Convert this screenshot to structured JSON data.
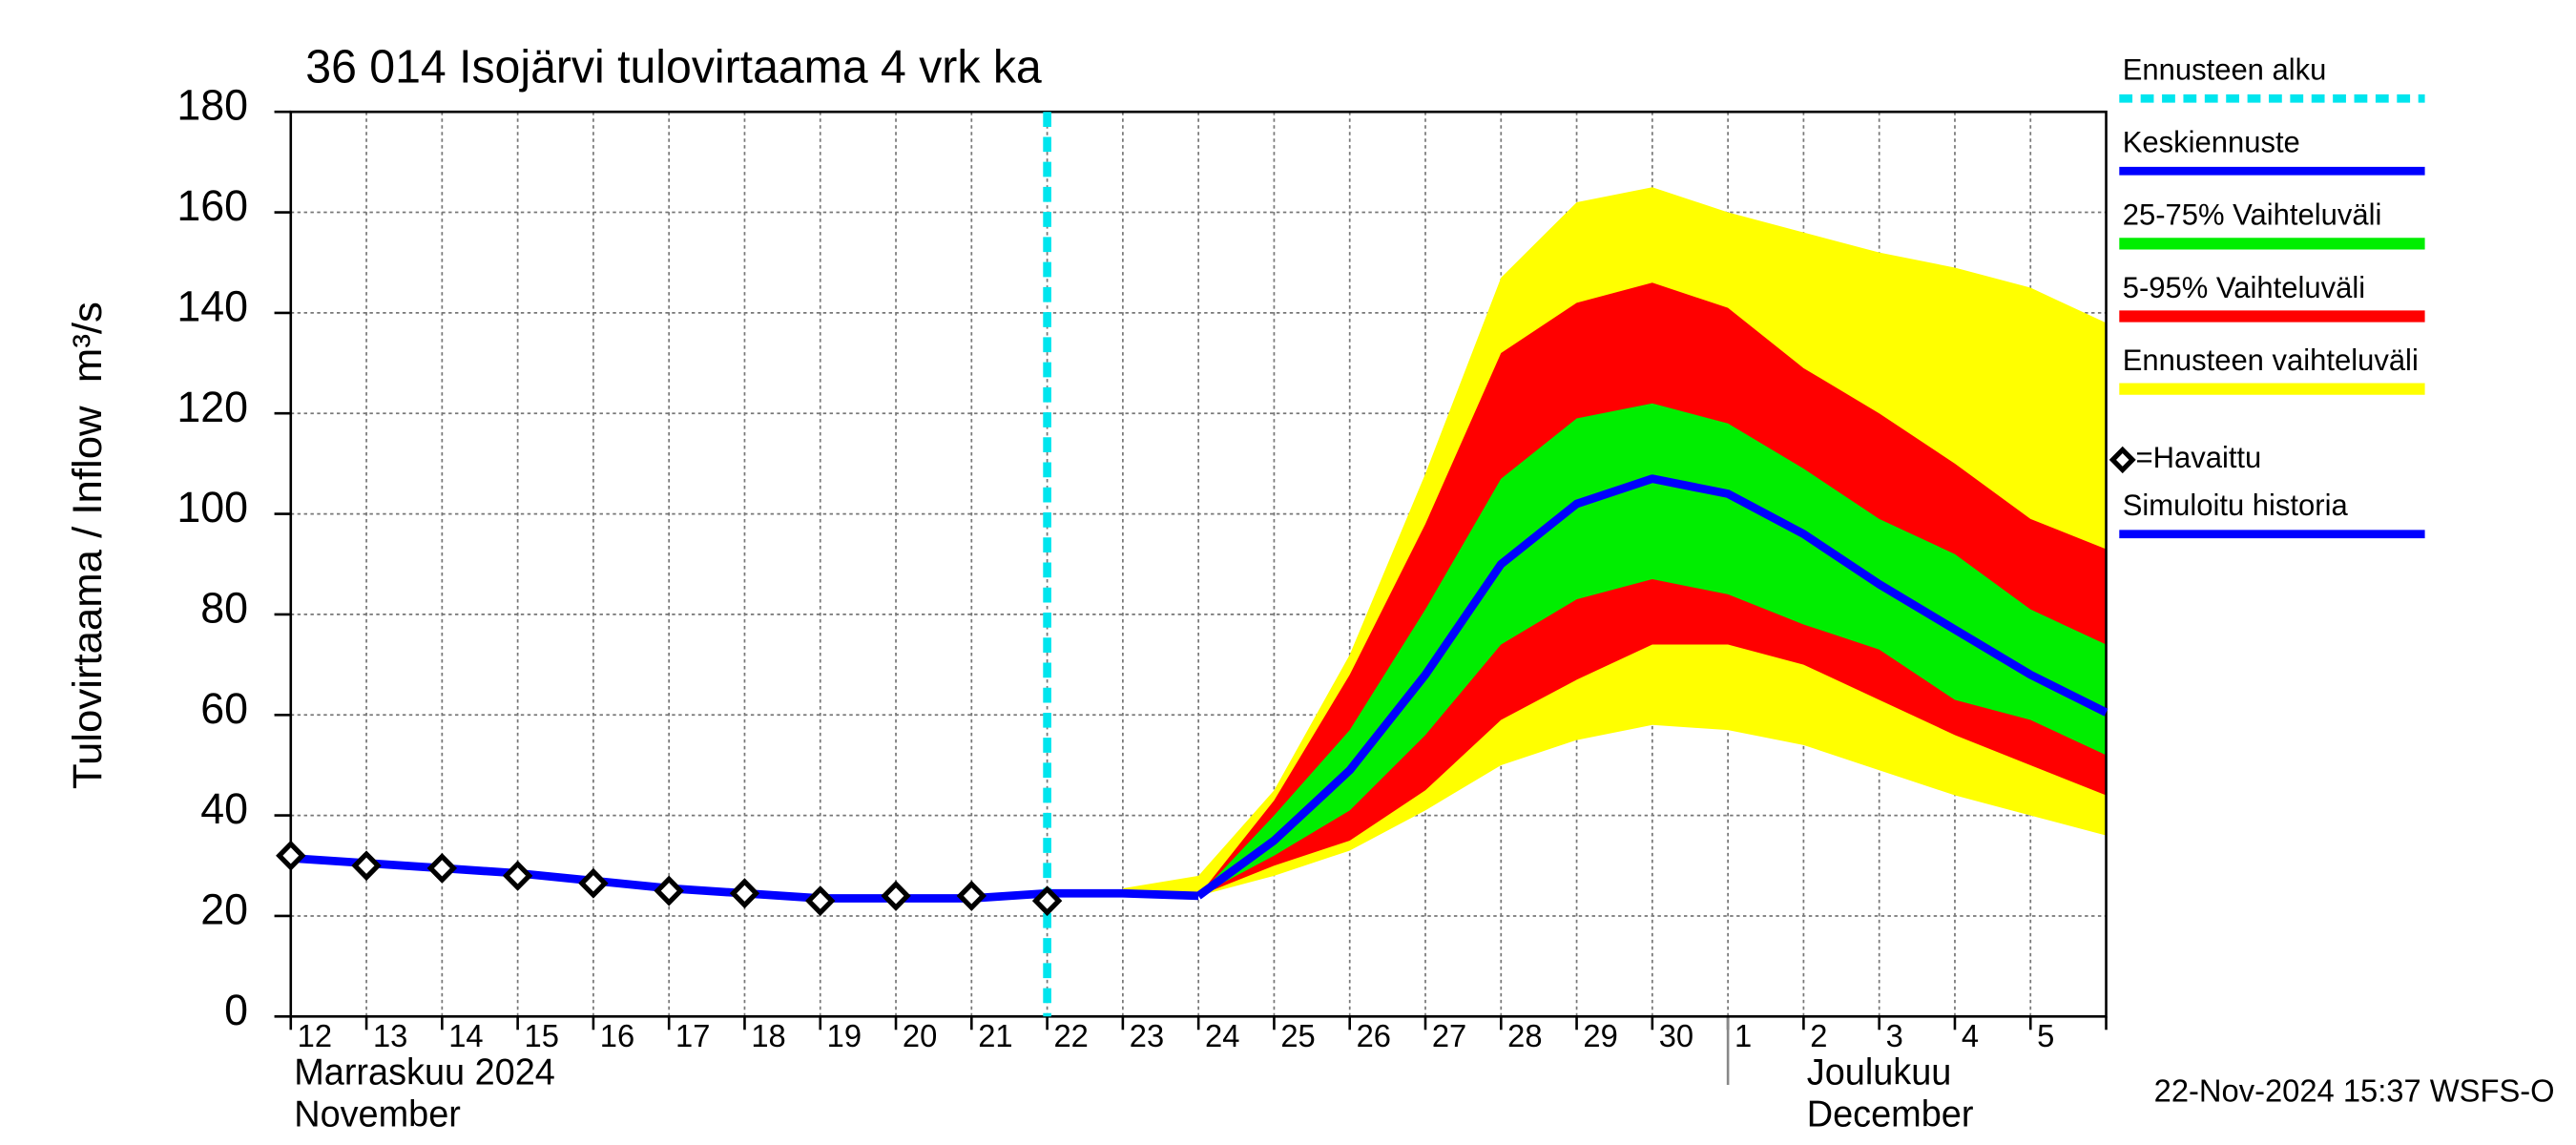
{
  "chart_data": {
    "type": "forecast-band",
    "title": "36 014 Isojärvi tulovirtaama 4 vrk ka",
    "y_label": "Tulovirtaama / Inflow",
    "y_unit": "m³/s",
    "categories": [
      "12",
      "13",
      "14",
      "15",
      "16",
      "17",
      "18",
      "19",
      "20",
      "21",
      "22",
      "23",
      "24",
      "25",
      "26",
      "27",
      "28",
      "29",
      "30",
      "1",
      "2",
      "3",
      "4",
      "5",
      null
    ],
    "month_labels": [
      {
        "lines": [
          "Marraskuu 2024",
          "November"
        ],
        "at": "12"
      },
      {
        "lines": [
          "Joulukuu",
          "December"
        ],
        "at": "1"
      }
    ],
    "forecast_start": "22",
    "ylim": [
      0,
      180
    ],
    "yticks": [
      0,
      20,
      40,
      60,
      80,
      100,
      120,
      140,
      160,
      180
    ],
    "grid": true,
    "bands": [
      {
        "name": "Ennusteen vaihteluväli",
        "color": "#ffff00",
        "upper": [
          null,
          null,
          null,
          null,
          null,
          null,
          null,
          null,
          null,
          null,
          null,
          25.5,
          28,
          45,
          72,
          108,
          147,
          162,
          165,
          160,
          156,
          152,
          149,
          145,
          138
        ],
        "lower": [
          null,
          null,
          null,
          null,
          null,
          null,
          null,
          null,
          null,
          null,
          null,
          24.5,
          24,
          28,
          33,
          41,
          50,
          55,
          58,
          57,
          54,
          49,
          44,
          40,
          36
        ]
      },
      {
        "name": "5-95% Vaihteluväli",
        "color": "#ff0000",
        "upper": [
          null,
          null,
          null,
          null,
          null,
          null,
          null,
          null,
          null,
          null,
          null,
          null,
          24,
          43,
          68,
          98,
          132,
          142,
          146,
          141,
          129,
          120,
          110,
          99,
          93
        ],
        "lower": [
          null,
          null,
          null,
          null,
          null,
          null,
          null,
          null,
          null,
          null,
          null,
          null,
          24,
          30,
          35,
          45,
          59,
          67,
          74,
          74,
          70,
          63,
          56,
          50,
          44
        ]
      },
      {
        "name": "25-75% Vaihteluväli",
        "color": "#00ee00",
        "upper": [
          null,
          null,
          null,
          null,
          null,
          null,
          null,
          null,
          null,
          null,
          null,
          null,
          24,
          40,
          57,
          81,
          107,
          119,
          122,
          118,
          109,
          99,
          92,
          81,
          74
        ],
        "lower": [
          null,
          null,
          null,
          null,
          null,
          null,
          null,
          null,
          null,
          null,
          null,
          null,
          24,
          32,
          41,
          56,
          74,
          83,
          87,
          84,
          78,
          73,
          63,
          59,
          52
        ]
      }
    ],
    "series": [
      {
        "name": "Simuloitu historia",
        "color": "#0000ff",
        "values": [
          31.5,
          30.5,
          29.5,
          28.5,
          27,
          25.5,
          24.5,
          23.5,
          23.5,
          23.5,
          24.5,
          24.5,
          24,
          null,
          null,
          null,
          null,
          null,
          null,
          null,
          null,
          null,
          null,
          null,
          null
        ]
      },
      {
        "name": "Keskiennuste",
        "color": "#0000ff",
        "values": [
          null,
          null,
          null,
          null,
          null,
          null,
          null,
          null,
          null,
          null,
          null,
          null,
          24,
          35,
          49,
          68,
          90,
          102,
          107,
          104,
          96,
          86,
          77,
          68,
          60.5
        ]
      },
      {
        "name": "=Havaittu",
        "color": "#000000",
        "marker": "diamond",
        "values": [
          32,
          30,
          29.5,
          28,
          26.5,
          25,
          24.5,
          23,
          24,
          24,
          23,
          null,
          null,
          null,
          null,
          null,
          null,
          null,
          null,
          null,
          null,
          null,
          null,
          null,
          null
        ]
      }
    ],
    "forecast_line": {
      "name": "Ennusteen alku",
      "color": "#00e5ee"
    },
    "legend": [
      "Ennusteen alku",
      "Keskiennuste",
      "25-75% Vaihteluväli",
      "5-95% Vaihteluväli",
      "Ennusteen vaihteluväli",
      "=Havaittu",
      "Simuloitu historia"
    ],
    "footer": "22-Nov-2024 15:37 WSFS-O"
  }
}
